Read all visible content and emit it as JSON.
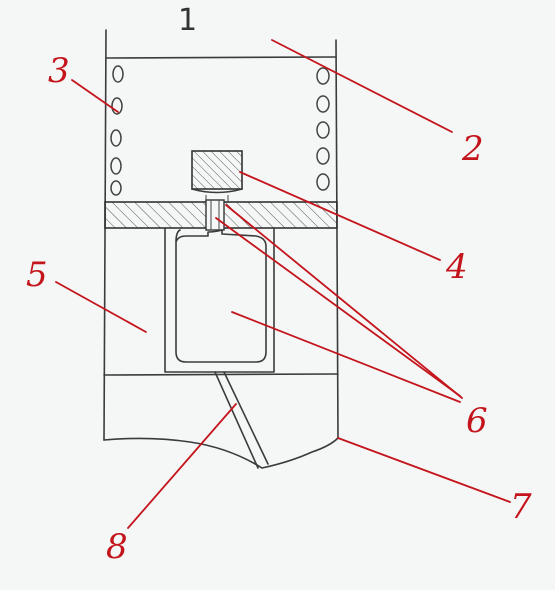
{
  "diagram": {
    "labels": {
      "l1": "1",
      "l2": "2",
      "l3": "3",
      "l4": "4",
      "l5": "5",
      "l6": "6",
      "l7": "7",
      "l8": "8"
    },
    "colors": {
      "leader": "#c4141c",
      "pencil": "#3b3b3b",
      "paper": "#f4f7f6"
    }
  }
}
